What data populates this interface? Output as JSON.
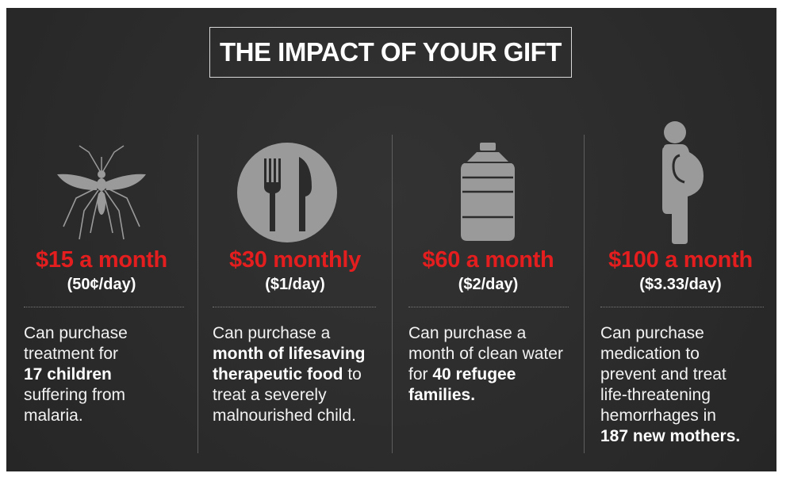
{
  "title": "THE IMPACT OF YOUR GIFT",
  "colors": {
    "background": "#2b2b2b",
    "accent_red": "#e41e1e",
    "icon_gray": "#9a9a9a",
    "text": "#ffffff"
  },
  "tiers": [
    {
      "icon": "mosquito-icon",
      "price": "$15 a month",
      "per_day": "(50¢/day)",
      "desc_1": "Can purchase",
      "desc_2": "treatment for",
      "desc_3": "17 children",
      "desc_4": "suffering from",
      "desc_5": "malaria."
    },
    {
      "icon": "fork-knife-icon",
      "price": "$30 monthly",
      "per_day": "($1/day)",
      "desc_1": "Can purchase a",
      "desc_2": "month of lifesaving",
      "desc_3a": "therapeutic food",
      "desc_3b": " to",
      "desc_4": "treat a severely",
      "desc_5": "malnourished child."
    },
    {
      "icon": "water-jug-icon",
      "price": "$60 a month",
      "per_day": "($2/day)",
      "desc_1": "Can purchase a",
      "desc_2": "month of clean water",
      "desc_3a": "for ",
      "desc_3b": "40 refugee",
      "desc_4": "families."
    },
    {
      "icon": "pregnant-woman-icon",
      "price": "$100 a month",
      "per_day": "($3.33/day)",
      "desc_1": "Can purchase",
      "desc_2": "medication to",
      "desc_3": "prevent and treat",
      "desc_4": "life-threatening",
      "desc_5": "hemorrhages in",
      "desc_6": "187 new mothers."
    }
  ]
}
